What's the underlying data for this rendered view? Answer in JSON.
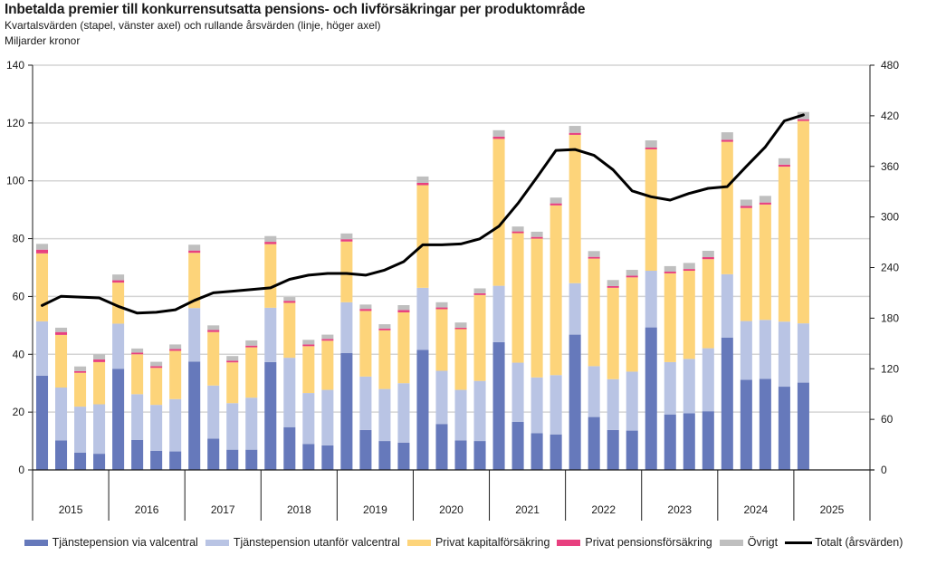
{
  "chart_data": {
    "type": "bar",
    "subtype": "stacked-bar-with-line",
    "title": "Inbetalda premier till konkurrensutsatta pensions- och livförsäkringar per produktområde",
    "subtitle": "Kvartalsvärden (stapel, vänster axel) och rullande årsvärden (linje, höger axel)",
    "unit": "Miljarder kronor",
    "xlabel": "",
    "ylabel": "",
    "ylim": [
      0,
      140
    ],
    "yticks": [
      0,
      20,
      40,
      60,
      80,
      100,
      120,
      140
    ],
    "y2lim": [
      0,
      480
    ],
    "y2ticks": [
      0,
      60,
      120,
      180,
      240,
      300,
      360,
      420,
      480
    ],
    "grid": true,
    "legend_position": "bottom",
    "years": [
      "2015",
      "2016",
      "2017",
      "2018",
      "2019",
      "2020",
      "2021",
      "2022",
      "2023",
      "2024",
      "2025"
    ],
    "quarters_per_year": 4,
    "categories": [
      "2015Q1",
      "2015Q2",
      "2015Q3",
      "2015Q4",
      "2016Q1",
      "2016Q2",
      "2016Q3",
      "2016Q4",
      "2017Q1",
      "2017Q2",
      "2017Q3",
      "2017Q4",
      "2018Q1",
      "2018Q2",
      "2018Q3",
      "2018Q4",
      "2019Q1",
      "2019Q2",
      "2019Q3",
      "2019Q4",
      "2020Q1",
      "2020Q2",
      "2020Q3",
      "2020Q4",
      "2021Q1",
      "2021Q2",
      "2021Q3",
      "2021Q4",
      "2022Q1",
      "2022Q2",
      "2022Q3",
      "2022Q4",
      "2023Q1",
      "2023Q2",
      "2023Q3",
      "2023Q4",
      "2024Q1",
      "2024Q2",
      "2024Q3",
      "2024Q4",
      "2025Q1"
    ],
    "series": [
      {
        "name": "Tjänstepension via valcentral",
        "color": "#6679bb",
        "axis": "left",
        "kind": "bar",
        "values": [
          32.6,
          10.2,
          6.0,
          5.6,
          35.0,
          10.4,
          6.6,
          6.4,
          37.5,
          10.8,
          7.0,
          7.0,
          37.3,
          14.8,
          9.0,
          8.5,
          40.4,
          13.8,
          10.0,
          9.4,
          41.5,
          15.9,
          10.2,
          10.0,
          44.2,
          16.6,
          12.7,
          12.3,
          46.8,
          18.3,
          13.8,
          13.6,
          49.3,
          19.2,
          19.6,
          20.3,
          45.8,
          31.2,
          31.5,
          28.8,
          30.2
        ]
      },
      {
        "name": "Tjänstepension utanför valcentral",
        "color": "#b9c4e4",
        "axis": "left",
        "kind": "bar",
        "values": [
          18.8,
          18.3,
          15.9,
          17.1,
          15.6,
          15.8,
          15.9,
          18.1,
          18.5,
          18.4,
          16.1,
          18.0,
          18.8,
          24.0,
          17.6,
          19.2,
          17.6,
          18.5,
          18.0,
          20.6,
          21.5,
          18.4,
          17.5,
          20.8,
          19.5,
          20.5,
          19.3,
          20.5,
          17.8,
          17.6,
          17.6,
          20.4,
          19.6,
          18.1,
          18.8,
          21.8,
          21.9,
          20.3,
          20.4,
          22.5,
          20.5
        ]
      },
      {
        "name": "Privat kapitalförsäkring",
        "color": "#fdd47a",
        "axis": "left",
        "kind": "bar",
        "values": [
          23.5,
          18.2,
          11.7,
          14.6,
          14.2,
          13.8,
          12.8,
          16.7,
          19.1,
          18.5,
          14.1,
          17.4,
          22.0,
          19.0,
          16.2,
          17.0,
          21.0,
          22.7,
          20.3,
          24.5,
          35.5,
          21.3,
          21.0,
          29.7,
          50.8,
          44.8,
          48.0,
          58.7,
          51.3,
          37.2,
          31.6,
          32.6,
          42.0,
          30.7,
          30.5,
          30.8,
          45.8,
          39.1,
          39.9,
          53.6,
          70.0
        ]
      },
      {
        "name": "Privat pensionsförsäkring",
        "color": "#e8407f",
        "axis": "left",
        "kind": "bar",
        "values": [
          1.3,
          1.0,
          0.6,
          0.9,
          0.8,
          0.6,
          0.6,
          0.6,
          0.8,
          0.7,
          0.6,
          0.6,
          0.8,
          0.7,
          0.6,
          0.6,
          0.8,
          0.7,
          0.6,
          0.8,
          0.8,
          0.6,
          0.5,
          0.6,
          0.8,
          0.6,
          0.6,
          0.7,
          0.7,
          0.6,
          0.6,
          0.6,
          0.6,
          0.6,
          0.6,
          0.7,
          0.7,
          0.7,
          0.7,
          0.7,
          0.6
        ]
      },
      {
        "name": "Övrigt",
        "color": "#bfbfbf",
        "axis": "left",
        "kind": "bar",
        "values": [
          2.0,
          1.5,
          1.6,
          1.8,
          2.0,
          1.4,
          1.5,
          1.6,
          2.0,
          1.6,
          1.6,
          1.8,
          2.0,
          1.3,
          1.6,
          1.5,
          2.0,
          1.5,
          1.5,
          1.7,
          2.2,
          1.8,
          1.8,
          1.7,
          2.2,
          1.7,
          1.8,
          2.0,
          2.4,
          2.0,
          2.1,
          2.0,
          2.5,
          1.9,
          2.1,
          2.2,
          2.6,
          2.2,
          2.3,
          2.2,
          2.5
        ]
      },
      {
        "name": "Totalt (årsvärden)",
        "color": "#000000",
        "axis": "right",
        "kind": "line",
        "values": [
          195,
          206,
          205,
          204,
          194,
          186,
          187,
          190,
          201,
          210,
          212,
          214,
          216,
          226,
          231,
          233,
          233,
          231,
          237,
          247,
          267,
          267,
          268,
          274,
          289,
          316,
          347,
          379,
          380,
          373,
          356,
          331,
          324,
          320,
          328,
          334,
          336,
          360,
          383,
          414,
          421
        ]
      }
    ]
  }
}
